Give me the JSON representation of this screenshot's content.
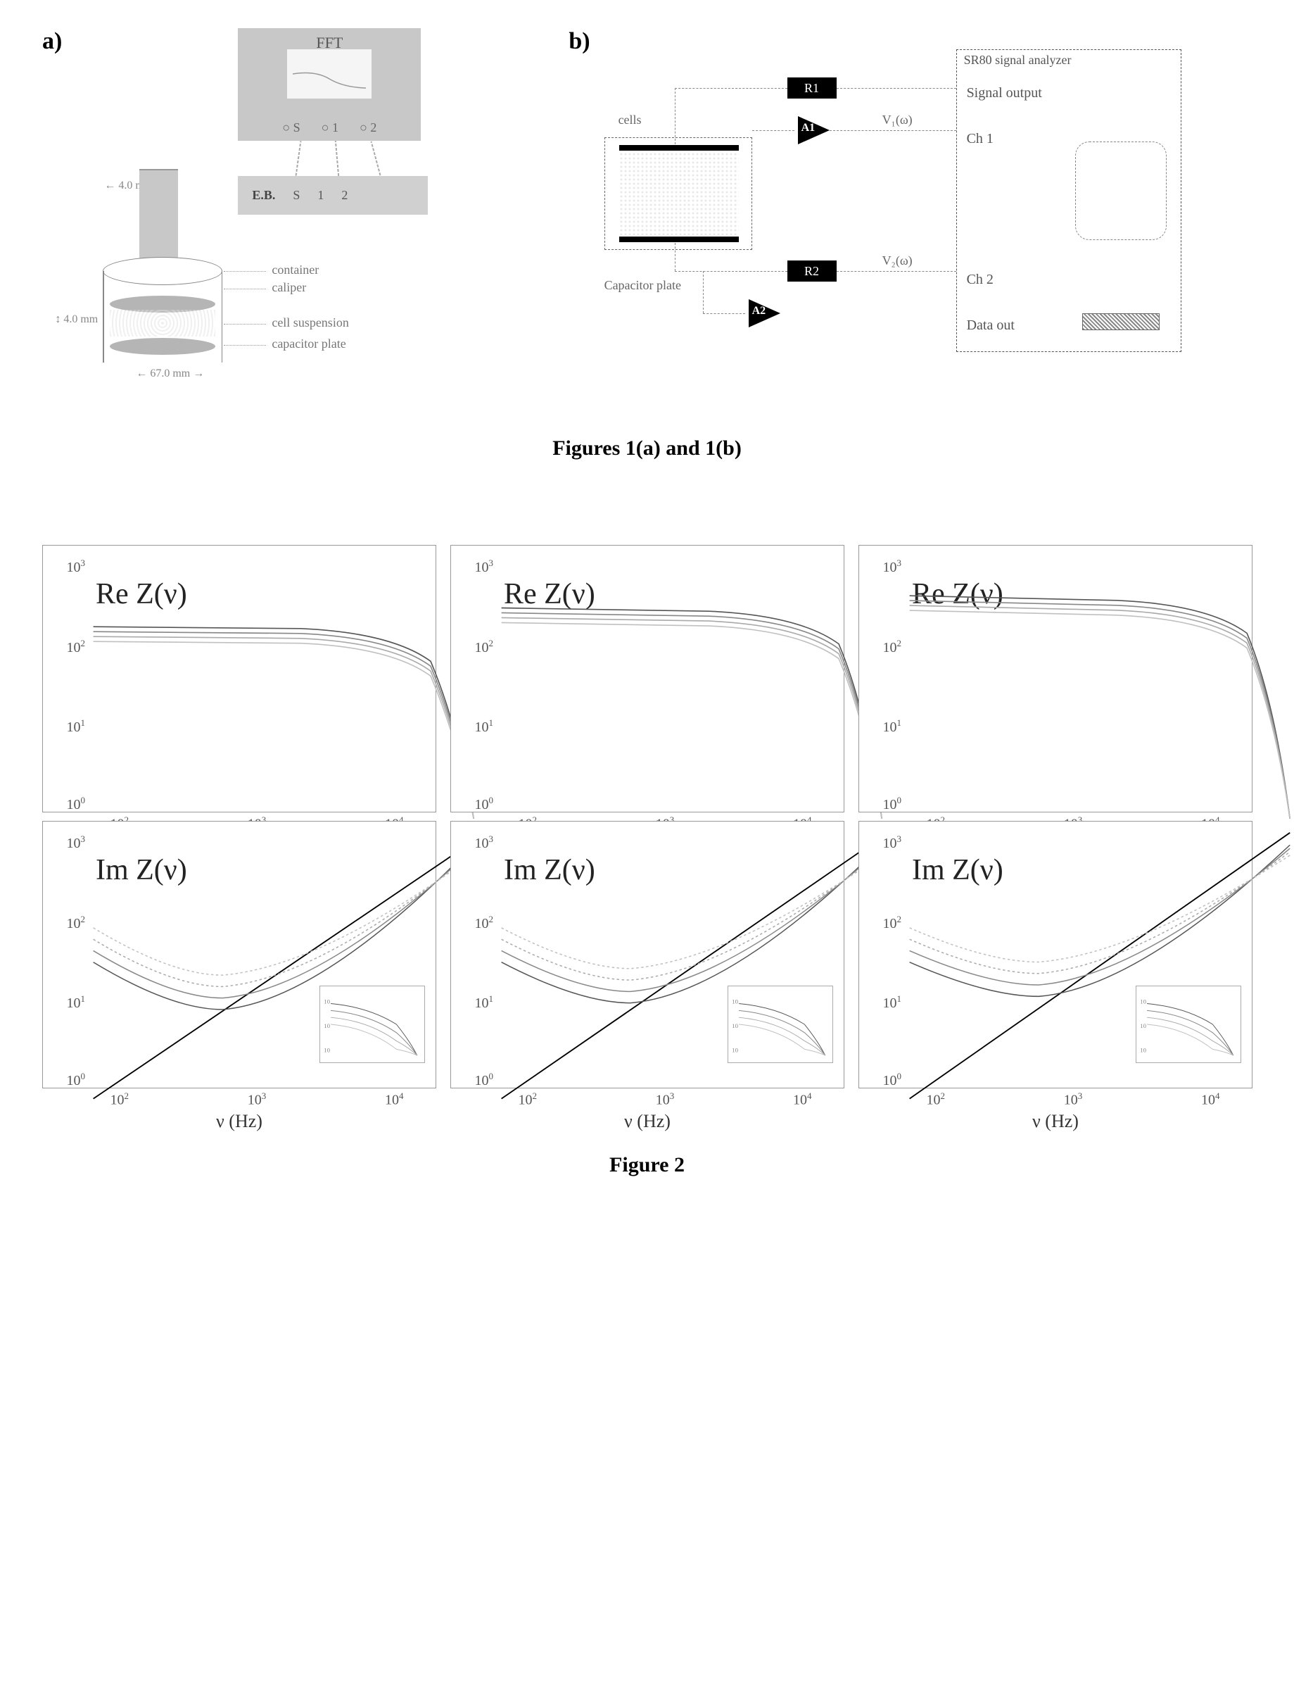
{
  "fig1": {
    "caption": "Figures 1(a) and 1(b)",
    "a": {
      "label": "a)",
      "fft_label": "FFT",
      "fft_ports": [
        "S",
        "1",
        "2"
      ],
      "eb_label": "E.B.",
      "eb_ports": [
        "S",
        "1",
        "2"
      ],
      "caliper_dim": "4.0 mm",
      "gap_dim": "4.0 mm",
      "diameter": "67.0 mm",
      "leaders": {
        "container": "container",
        "caliper": "caliper",
        "suspension": "cell suspension",
        "plate": "capacitor plate"
      }
    },
    "b": {
      "label": "b)",
      "analyzer_title": "SR80 signal analyzer",
      "signal_output": "Signal output",
      "ch1": "Ch 1",
      "ch2": "Ch 2",
      "data_out": "Data out",
      "cells": "cells",
      "cap_plate": "Capacitor plate",
      "R1": "R1",
      "R2": "R2",
      "A1": "A1",
      "A2": "A2",
      "V1": "V₁(ω)",
      "V2": "V₂(ω)"
    }
  },
  "fig2": {
    "caption": "Figure 2",
    "x_axis_label": "ν (Hz)",
    "top_label": "Re Z(ν)",
    "bottom_label": "Im Z(ν)",
    "y_ticks": [
      {
        "pos": 0.97,
        "label": "10",
        "exp": "0"
      },
      {
        "pos": 0.68,
        "label": "10",
        "exp": "1"
      },
      {
        "pos": 0.38,
        "label": "10",
        "exp": "2"
      },
      {
        "pos": 0.08,
        "label": "10",
        "exp": "3"
      }
    ],
    "x_ticks": [
      {
        "pos": 0.1,
        "label": "10",
        "exp": "2"
      },
      {
        "pos": 0.5,
        "label": "10",
        "exp": "3"
      },
      {
        "pos": 0.9,
        "label": "10",
        "exp": "4"
      }
    ],
    "re_curves": [
      {
        "col": 0,
        "start_y": 200,
        "plateau_y": 190
      },
      {
        "col": 1,
        "start_y": 340,
        "plateau_y": 310
      },
      {
        "col": 2,
        "start_y": 480,
        "plateau_y": 420
      }
    ],
    "im_line": {
      "x1": 0,
      "y1": 340,
      "x2": 100,
      "y2": 30
    },
    "im_curves_y_offsets": [
      [
        85,
        65,
        50,
        60,
        120
      ],
      [
        130,
        100,
        80,
        100,
        180
      ],
      [
        140,
        105,
        85,
        110,
        200
      ]
    ],
    "colors": {
      "border": "#999999",
      "text": "#333333",
      "curve1": "#555555",
      "curve2": "#888888",
      "curve3": "#aaaaaa",
      "curve4": "#c0c0c0",
      "line": "#000000"
    }
  }
}
